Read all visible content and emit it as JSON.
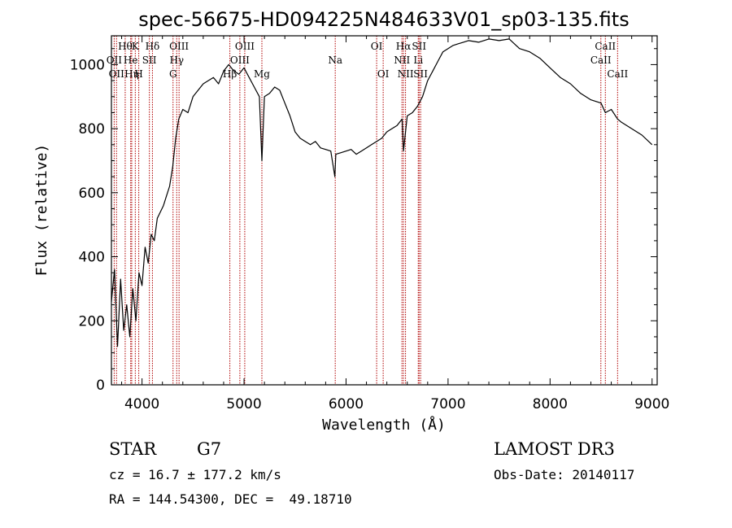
{
  "colors": {
    "spectrum": "#000000",
    "line_marker": "#b00000",
    "axes": "#000000"
  },
  "chart_data": {
    "type": "line",
    "title": "spec-56675-HD094225N484633V01_sp03-135.fits",
    "xlabel": "Wavelength (Å)",
    "ylabel": "Flux (relative)",
    "xlim": [
      3700,
      9050
    ],
    "ylim": [
      0,
      1090
    ],
    "xticks": [
      4000,
      5000,
      6000,
      7000,
      8000,
      9000
    ],
    "yticks": [
      0,
      200,
      400,
      600,
      800,
      1000
    ],
    "grid": false,
    "series": [
      {
        "x": [
          3700,
          3730,
          3760,
          3790,
          3820,
          3850,
          3880,
          3910,
          3940,
          3970,
          4000,
          4030,
          4060,
          4090,
          4120,
          4150,
          4180,
          4210,
          4240,
          4270,
          4300,
          4330,
          4360,
          4400,
          4450,
          4500,
          4550,
          4600,
          4650,
          4700,
          4750,
          4800,
          4850,
          4900,
          4950,
          5000,
          5050,
          5100,
          5150,
          5175,
          5200,
          5250,
          5300,
          5350,
          5400,
          5450,
          5500,
          5550,
          5600,
          5650,
          5700,
          5750,
          5800,
          5850,
          5890,
          5900,
          5950,
          6000,
          6050,
          6100,
          6150,
          6200,
          6250,
          6300,
          6350,
          6400,
          6450,
          6500,
          6550,
          6563,
          6600,
          6650,
          6700,
          6750,
          6800,
          6850,
          6900,
          6950,
          7000,
          7050,
          7100,
          7150,
          7200,
          7300,
          7400,
          7500,
          7600,
          7700,
          7800,
          7900,
          8000,
          8100,
          8200,
          8300,
          8400,
          8500,
          8542,
          8600,
          8662,
          8700,
          8800,
          8900,
          9000
        ],
        "y": [
          260,
          360,
          120,
          330,
          170,
          250,
          150,
          300,
          200,
          350,
          310,
          430,
          380,
          470,
          450,
          520,
          540,
          560,
          590,
          620,
          680,
          770,
          830,
          860,
          850,
          900,
          920,
          940,
          950,
          960,
          940,
          980,
          1000,
          980,
          970,
          990,
          960,
          930,
          900,
          700,
          900,
          910,
          930,
          920,
          880,
          840,
          790,
          770,
          760,
          750,
          760,
          740,
          735,
          730,
          650,
          720,
          725,
          730,
          735,
          720,
          730,
          740,
          750,
          760,
          770,
          790,
          800,
          810,
          830,
          730,
          840,
          850,
          870,
          900,
          950,
          980,
          1010,
          1040,
          1050,
          1060,
          1065,
          1070,
          1075,
          1070,
          1080,
          1075,
          1080,
          1050,
          1040,
          1020,
          990,
          960,
          940,
          910,
          890,
          880,
          850,
          860,
          830,
          820,
          800,
          780,
          750
        ]
      }
    ],
    "spectral_lines": [
      {
        "wavelength": 3727,
        "label": "OII",
        "row": 2
      },
      {
        "wavelength": 3750,
        "label": "OII",
        "row": 3
      },
      {
        "wavelength": 3835,
        "label": "Hθ",
        "row": 1
      },
      {
        "wavelength": 3889,
        "label": "He",
        "row": 2
      },
      {
        "wavelength": 3899,
        "label": "Hη",
        "row": 3
      },
      {
        "wavelength": 3934,
        "label": "K",
        "row": 1
      },
      {
        "wavelength": 3968,
        "label": "H",
        "row": 3
      },
      {
        "wavelength": 4072,
        "label": "SII",
        "row": 2
      },
      {
        "wavelength": 4102,
        "label": "Hδ",
        "row": 1
      },
      {
        "wavelength": 4304,
        "label": "G",
        "row": 3
      },
      {
        "wavelength": 4340,
        "label": "Hγ",
        "row": 2
      },
      {
        "wavelength": 4363,
        "label": "OIII",
        "row": 1
      },
      {
        "wavelength": 4861,
        "label": "Hβ",
        "row": 3
      },
      {
        "wavelength": 4959,
        "label": "OIII",
        "row": 2
      },
      {
        "wavelength": 5007,
        "label": "OIII",
        "row": 1
      },
      {
        "wavelength": 5175,
        "label": "Mg",
        "row": 3
      },
      {
        "wavelength": 5894,
        "label": "Na",
        "row": 2
      },
      {
        "wavelength": 6300,
        "label": "OI",
        "row": 1
      },
      {
        "wavelength": 6364,
        "label": "OI",
        "row": 3
      },
      {
        "wavelength": 6548,
        "label": "NII",
        "row": 2
      },
      {
        "wavelength": 6563,
        "label": "Hα",
        "row": 1
      },
      {
        "wavelength": 6583,
        "label": "NII",
        "row": 3
      },
      {
        "wavelength": 6708,
        "label": "Li",
        "row": 2
      },
      {
        "wavelength": 6716,
        "label": "SII",
        "row": 1
      },
      {
        "wavelength": 6731,
        "label": "SII",
        "row": 3
      },
      {
        "wavelength": 8498,
        "label": "CaII",
        "row": 2
      },
      {
        "wavelength": 8542,
        "label": "CaII",
        "row": 1
      },
      {
        "wavelength": 8662,
        "label": "CaII",
        "row": 3
      }
    ]
  },
  "info": {
    "class": "STAR",
    "subclass": "G7",
    "survey": "LAMOST DR3",
    "cz": "cz = 16.7 ± 177.2 km/s",
    "obs_date": "Obs-Date: 20140117",
    "radec": "RA = 144.54300, DEC =  49.18710"
  }
}
